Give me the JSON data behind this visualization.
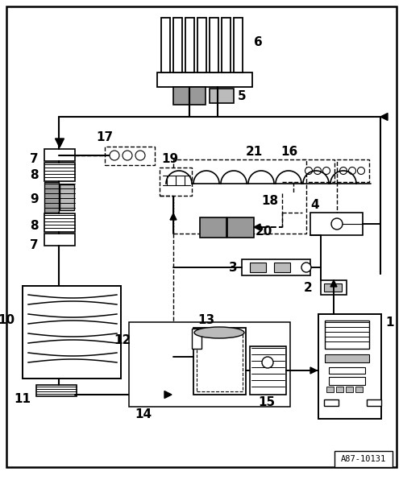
{
  "figsize": [
    5.0,
    5.96
  ],
  "dpi": 100,
  "bg": "#ffffff",
  "watermark": "A87-10131",
  "lw_main": 1.5,
  "lw_pipe": 1.4,
  "lw_dash": 1.0,
  "gray1": "#999999",
  "gray2": "#bbbbbb",
  "gray3": "#cccccc"
}
